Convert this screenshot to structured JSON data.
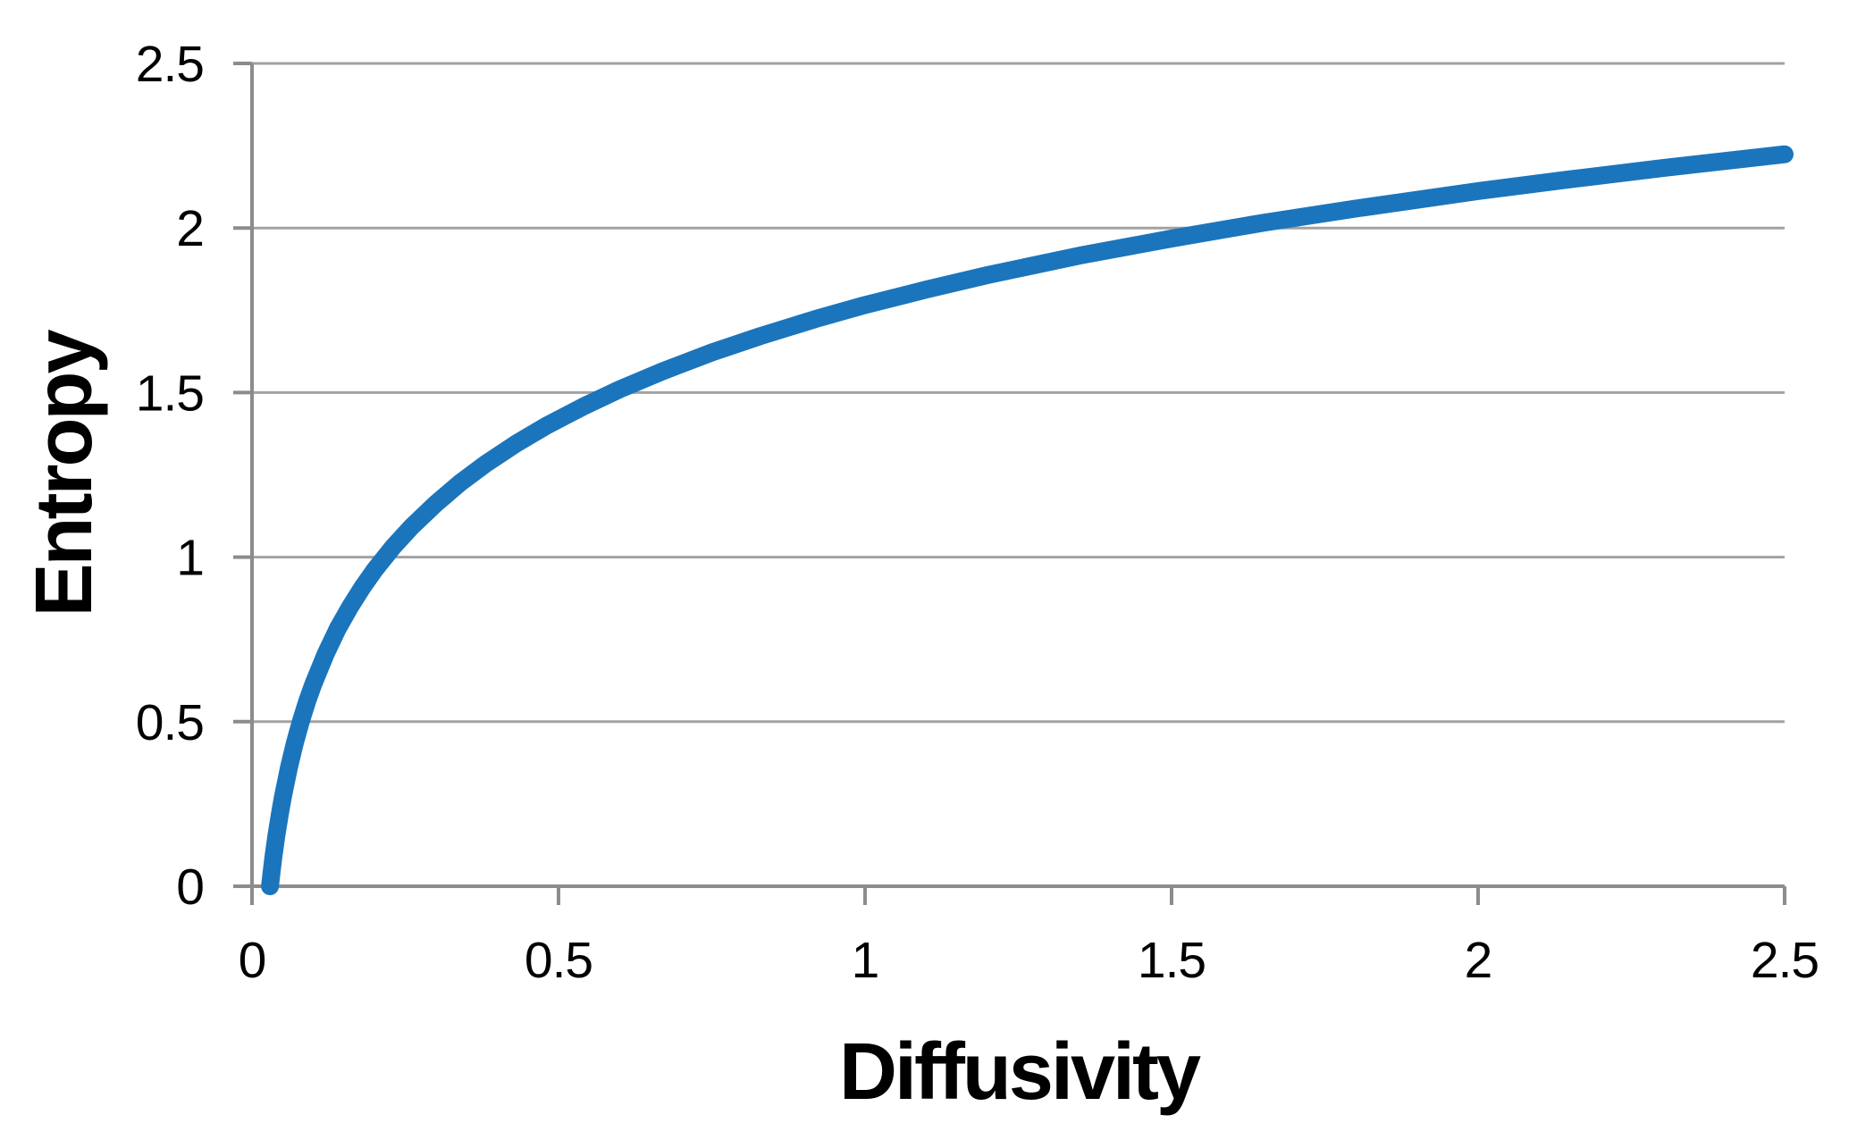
{
  "figure": {
    "background": "#ffffff"
  },
  "colors": {
    "curve": "#1b75bc",
    "gridline": "#a2a2a2",
    "axis": "#8c8c8c",
    "text": "#000000",
    "background": "#ffffff"
  },
  "chart_data": {
    "type": "line",
    "title": "",
    "xlabel": "Diffusivity",
    "ylabel": "Entropy",
    "xlim": [
      0,
      2.5
    ],
    "ylim": [
      0,
      2.5
    ],
    "x_tick_values": [
      0,
      0.5,
      1,
      1.5,
      2,
      2.5
    ],
    "x_tick_labels": [
      "0",
      "0.5",
      "1",
      "1.5",
      "2",
      "2.5"
    ],
    "y_tick_values": [
      0,
      0.5,
      1,
      1.5,
      2,
      2.5
    ],
    "y_tick_labels": [
      "0",
      "0.5",
      "1",
      "1.5",
      "2",
      "2.5"
    ],
    "grid": "horizontal",
    "legend": "none",
    "fit_function": "Entropy = 0.5*ln(4*pi*e*D), plotted from D ~ 0.029 (Entropy = 0) to D = 2.5 (Entropy ~ 2.22)",
    "series": [
      {
        "name": "Entropy",
        "color": "#1b75bc",
        "points": [
          [
            0.0293,
            0.0
          ],
          [
            0.032,
            0.045
          ],
          [
            0.035,
            0.09
          ],
          [
            0.04,
            0.156
          ],
          [
            0.045,
            0.215
          ],
          [
            0.05,
            0.268
          ],
          [
            0.06,
            0.359
          ],
          [
            0.07,
            0.436
          ],
          [
            0.08,
            0.503
          ],
          [
            0.09,
            0.562
          ],
          [
            0.1,
            0.614
          ],
          [
            0.12,
            0.705
          ],
          [
            0.14,
            0.783
          ],
          [
            0.16,
            0.849
          ],
          [
            0.18,
            0.908
          ],
          [
            0.2,
            0.961
          ],
          [
            0.23,
            1.031
          ],
          [
            0.26,
            1.092
          ],
          [
            0.3,
            1.163
          ],
          [
            0.34,
            1.226
          ],
          [
            0.38,
            1.282
          ],
          [
            0.43,
            1.344
          ],
          [
            0.48,
            1.399
          ],
          [
            0.54,
            1.457
          ],
          [
            0.6,
            1.51
          ],
          [
            0.67,
            1.565
          ],
          [
            0.75,
            1.622
          ],
          [
            0.83,
            1.672
          ],
          [
            0.92,
            1.724
          ],
          [
            1.0,
            1.766
          ],
          [
            1.1,
            1.813
          ],
          [
            1.2,
            1.857
          ],
          [
            1.35,
            1.916
          ],
          [
            1.5,
            1.968
          ],
          [
            1.65,
            2.016
          ],
          [
            1.8,
            2.059
          ],
          [
            2.0,
            2.112
          ],
          [
            2.15,
            2.148
          ],
          [
            2.3,
            2.182
          ],
          [
            2.4,
            2.203
          ],
          [
            2.5,
            2.224
          ]
        ]
      }
    ]
  }
}
